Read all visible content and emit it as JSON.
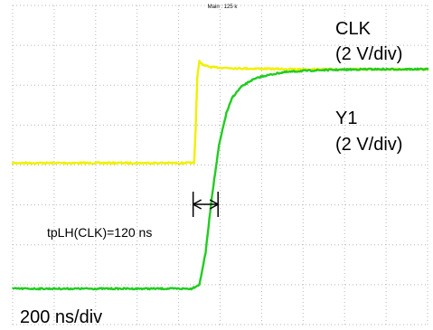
{
  "header": {
    "main_label": "Main : 125 k"
  },
  "labels": {
    "clk_name": "CLK",
    "clk_scale": "(2 V/div)",
    "y1_name": "Y1",
    "y1_scale": "(2 V/div)",
    "timing": "tpLH(CLK)=120 ns",
    "timebase": "200 ns/div"
  },
  "colors": {
    "clk": "#f0f000",
    "y1": "#22cc22",
    "grid": "#b8b8b8",
    "marker": "#000000"
  },
  "chart_data": {
    "type": "line",
    "title": "",
    "xlabel": "",
    "ylabel": "",
    "xlim": [
      0,
      2000
    ],
    "ylim": [
      -4,
      4
    ],
    "grid": true,
    "divisions": {
      "x": 10,
      "y": 8
    },
    "series": [
      {
        "name": "CLK",
        "scale": "2 V/div",
        "x": [
          0,
          860,
          875,
          882,
          890,
          900,
          920,
          960,
          1100,
          1400,
          2000
        ],
        "y": [
          0.05,
          0.05,
          0.05,
          0.9,
          2.2,
          2.6,
          2.5,
          2.45,
          2.42,
          2.4,
          2.4
        ]
      },
      {
        "name": "Y1",
        "scale": "2 V/div",
        "x": [
          0,
          860,
          900,
          930,
          960,
          995,
          1030,
          1060,
          1100,
          1150,
          1200,
          1300,
          1400,
          1500,
          1700,
          1900,
          2000
        ],
        "y": [
          -3.1,
          -3.1,
          -3.0,
          -2.2,
          -0.8,
          0.5,
          1.3,
          1.7,
          1.95,
          2.12,
          2.22,
          2.32,
          2.36,
          2.38,
          2.4,
          2.4,
          2.4
        ]
      }
    ],
    "annotations": [
      {
        "text": "tpLH(CLK)=120 ns",
        "from_x": 870,
        "to_x": 990
      }
    ]
  }
}
